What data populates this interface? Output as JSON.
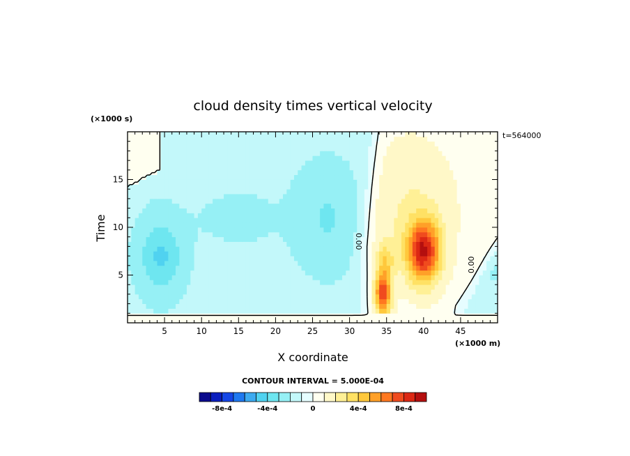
{
  "chart_data": {
    "type": "heatmap",
    "title": "cloud density times vertical velocity",
    "xlabel": "X coordinate",
    "ylabel": "Time",
    "x_units": "(×1000 m)",
    "y_units": "(×1000 s)",
    "time_stamp": "t=564000",
    "xlim": [
      0,
      50
    ],
    "ylim": [
      0,
      20
    ],
    "x_ticks": [
      "5",
      "10",
      "15",
      "20",
      "25",
      "30",
      "35",
      "40",
      "45"
    ],
    "y_ticks": [
      "5",
      "10",
      "15"
    ],
    "contour_interval_label": "CONTOUR INTERVAL = 5.000E-04",
    "contour_labels": [
      "0.00",
      "0.00"
    ],
    "colorbar": {
      "levels": [
        -0.001,
        -0.0009,
        -0.0008,
        -0.0007,
        -0.0006,
        -0.0005,
        -0.0004,
        -0.0003,
        -0.0002,
        -0.0001,
        0,
        0.0001,
        0.0002,
        0.0003,
        0.0004,
        0.0005,
        0.0006,
        0.0007,
        0.0008,
        0.0009,
        0.001
      ],
      "tick_labels": [
        "-8e-4",
        "-4e-4",
        "0",
        "4e-4",
        "8e-4"
      ],
      "tick_values": [
        -0.0008,
        -0.0004,
        0,
        0.0004,
        0.0008
      ],
      "colors": [
        "#0a0a8c",
        "#0a1ebe",
        "#1446e6",
        "#1e78f0",
        "#3caaf0",
        "#50d2f0",
        "#6ee6f0",
        "#96f0f5",
        "#c3f8fa",
        "#e6fdff",
        "#fffff0",
        "#fff8c8",
        "#fff096",
        "#ffe164",
        "#ffc83c",
        "#ffa028",
        "#ff7820",
        "#f04b1e",
        "#dc2814",
        "#b40f0f"
      ]
    },
    "features": [
      {
        "x": 4.5,
        "y": 7.0,
        "value": -0.0004,
        "kind": "negative minimum"
      },
      {
        "x": 27.0,
        "y": 11.0,
        "value": -0.0003,
        "kind": "negative minimum"
      },
      {
        "x": 40.0,
        "y": 7.5,
        "value": 0.0009,
        "kind": "positive maximum"
      },
      {
        "x": 34.5,
        "y": 3.0,
        "value": 0.0008,
        "kind": "positive maximum"
      }
    ]
  }
}
